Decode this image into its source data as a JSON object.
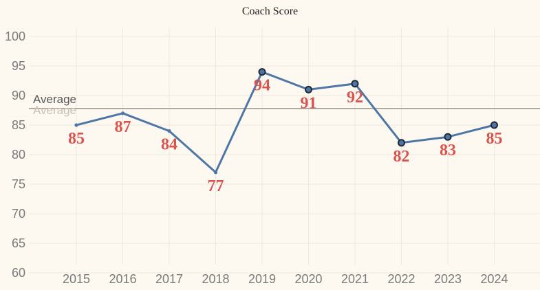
{
  "chart_data": {
    "type": "line",
    "title": "Coach Score",
    "xlabel": "",
    "ylabel": "",
    "categories": [
      "2015",
      "2016",
      "2017",
      "2018",
      "2019",
      "2020",
      "2021",
      "2022",
      "2023",
      "2024"
    ],
    "series": [
      {
        "values": [
          85,
          87,
          84,
          77,
          94,
          91,
          92,
          82,
          83,
          85
        ],
        "data_labels": [
          "85",
          "87",
          "84",
          "77",
          "94",
          "91",
          "92",
          "82",
          "83",
          "85"
        ],
        "highlighted_markers": [
          false,
          false,
          false,
          false,
          true,
          true,
          true,
          true,
          true,
          true
        ]
      }
    ],
    "ylim": [
      58,
      101
    ],
    "yticks": [
      60,
      65,
      70,
      75,
      80,
      85,
      90,
      95,
      100
    ],
    "yticks_labels": [
      "60",
      "65",
      "70",
      "75",
      "80",
      "85",
      "90",
      "95",
      "100"
    ],
    "reference_line": {
      "label": "Average",
      "value": 87.8
    },
    "grid": true,
    "legend": "none"
  },
  "colors": {
    "background": "#fdf8f0",
    "gridline": "#efe7dc",
    "line": "#4e77a6",
    "marker_fill": "#4e77a6",
    "marker_stroke": "#1f2a36",
    "data_label": "#d9534f",
    "reference_line": "#9a948c",
    "reference_label": "#5a5a5a",
    "reference_label_ghost": "#c8c2ba"
  }
}
